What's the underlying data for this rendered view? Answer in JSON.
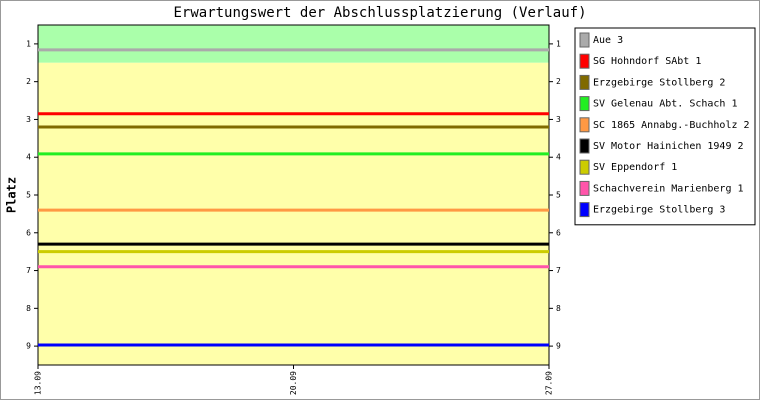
{
  "chart_data": {
    "type": "line",
    "title": "Erwartungswert der Abschlussplatzierung (Verlauf)",
    "y_label": "Platz",
    "categories": [
      "13.09",
      "20.09",
      "27.09"
    ],
    "ylim": [
      0.5,
      9.5
    ],
    "y_inverted": true,
    "yticks": [
      1,
      2,
      3,
      4,
      5,
      6,
      7,
      8,
      9
    ],
    "bands": [
      {
        "from": 0.5,
        "to": 1.5,
        "color": "#aaffaa"
      },
      {
        "from": 1.5,
        "to": 9.5,
        "color": "#ffffaa"
      }
    ],
    "legend": "right",
    "series": [
      {
        "name": "Aue 3",
        "color": "#aaaaaa",
        "values": [
          1.16,
          1.16,
          1.16
        ]
      },
      {
        "name": "SG Hohndorf SAbt 1",
        "color": "#ff0000",
        "values": [
          2.85,
          2.85,
          2.85
        ]
      },
      {
        "name": "Erzgebirge Stollberg 2",
        "color": "#806a00",
        "values": [
          3.2,
          3.2,
          3.2
        ]
      },
      {
        "name": "SV Gelenau Abt. Schach 1",
        "color": "#22ee22",
        "values": [
          3.91,
          3.91,
          3.91
        ]
      },
      {
        "name": "SC 1865 Annabg.-Buchholz 2",
        "color": "#ff9944",
        "values": [
          5.4,
          5.4,
          5.4
        ]
      },
      {
        "name": "SV Motor Hainichen 1949 2",
        "color": "#000000",
        "values": [
          6.3,
          6.3,
          6.3
        ]
      },
      {
        "name": "SV Eppendorf 1",
        "color": "#cccc00",
        "values": [
          6.5,
          6.5,
          6.5
        ]
      },
      {
        "name": "Schachverein Marienberg 1",
        "color": "#ff55aa",
        "values": [
          6.9,
          6.9,
          6.9
        ]
      },
      {
        "name": "Erzgebirge Stollberg 3",
        "color": "#0000ff",
        "values": [
          8.97,
          8.97,
          8.97
        ]
      }
    ]
  }
}
